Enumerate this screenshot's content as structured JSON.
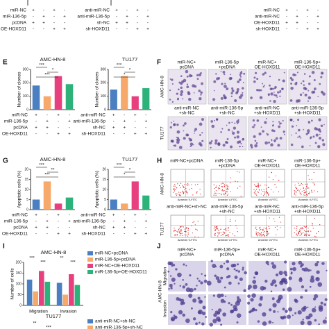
{
  "top_strip": [
    {
      "x": 40,
      "conditions": [
        {
          "label": "miR-NC",
          "signs": [
            "+",
            "-",
            "+",
            "-"
          ]
        },
        {
          "label": "miR-136-5p",
          "signs": [
            "-",
            "+",
            "-",
            "+"
          ]
        },
        {
          "label": "pcDNA",
          "signs": [
            "+",
            "+",
            "-",
            "-"
          ]
        },
        {
          "label": "OE-HOXD11",
          "signs": [
            "-",
            "-",
            "+",
            "+"
          ]
        }
      ]
    },
    {
      "x": 160,
      "conditions": [
        {
          "label": "anti-miR-NC",
          "signs": [
            "+",
            "-",
            "+",
            "-"
          ]
        },
        {
          "label": "anti-miR-136-5p",
          "signs": [
            "-",
            "+",
            "-",
            "+"
          ]
        },
        {
          "label": "sh-NC",
          "signs": [
            "+",
            "+",
            "-",
            "-"
          ]
        },
        {
          "label": "sh-HOXD11",
          "signs": [
            "-",
            "-",
            "+",
            "+"
          ]
        }
      ]
    },
    {
      "x": 405,
      "conditions": [
        {
          "label": "miR-NC",
          "signs": [
            "+",
            "-",
            "+",
            "-"
          ]
        },
        {
          "label": "anti-miR-NC",
          "signs": [
            "-",
            "+",
            "-",
            "+"
          ]
        },
        {
          "label": "OE-HOXD11",
          "signs": [
            "+",
            "+",
            "-",
            "-"
          ]
        },
        {
          "label": "sh-HOXD11",
          "signs": [
            "-",
            "-",
            "+",
            "+"
          ]
        }
      ]
    }
  ],
  "letters": [
    "E",
    "F",
    "G",
    "H",
    "I",
    "J"
  ],
  "chart_data": [
    {
      "type": "bar",
      "title": "AMC-HN-8",
      "ylabel": "Number of clones",
      "ylim": [
        0,
        300
      ],
      "yticks": [
        0,
        100,
        200,
        300
      ],
      "values": [
        180,
        100,
        250,
        190
      ],
      "colors": [
        "#4a7fc1",
        "#f6a96b",
        "#e8407f",
        "#2db37a"
      ],
      "annotations": [
        "***",
        "*",
        "***"
      ],
      "conditions": [
        {
          "label": "miR-NC",
          "signs": [
            "+",
            "-",
            "+",
            "-"
          ]
        },
        {
          "label": "miR-136-5p",
          "signs": [
            "-",
            "+",
            "-",
            "+"
          ]
        },
        {
          "label": "pcDNA",
          "signs": [
            "+",
            "+",
            "-",
            "-"
          ]
        },
        {
          "label": "OE-HOXD11",
          "signs": [
            "-",
            "-",
            "+",
            "+"
          ]
        }
      ]
    },
    {
      "type": "bar",
      "title": "TU177",
      "ylabel": "Number of clones",
      "ylim": [
        0,
        300
      ],
      "yticks": [
        0,
        100,
        200,
        300
      ],
      "values": [
        150,
        250,
        100,
        160
      ],
      "colors": [
        "#4a7fc1",
        "#f6a96b",
        "#e8407f",
        "#2db37a"
      ],
      "annotations": [
        "***",
        "*",
        "*"
      ],
      "conditions": [
        {
          "label": "anti-miR-NC",
          "signs": [
            "+",
            "-",
            "+",
            "-"
          ]
        },
        {
          "label": "anti-miR-136-5p",
          "signs": [
            "-",
            "+",
            "-",
            "+"
          ]
        },
        {
          "label": "sh-NC",
          "signs": [
            "+",
            "+",
            "-",
            "-"
          ]
        },
        {
          "label": "sh-HOXD11",
          "signs": [
            "-",
            "-",
            "+",
            "+"
          ]
        }
      ]
    },
    {
      "type": "bar",
      "title": "AMC-HN-8",
      "ylabel": "Apoptotic cells (%)",
      "ylim": [
        0,
        20
      ],
      "yticks": [
        0,
        5,
        10,
        15,
        20
      ],
      "values": [
        5,
        14,
        3,
        6
      ],
      "colors": [
        "#4a7fc1",
        "#f6a96b",
        "#e8407f",
        "#2db37a"
      ],
      "annotations": [
        "***",
        "**",
        "***"
      ],
      "conditions": [
        {
          "label": "miR-NC",
          "signs": [
            "+",
            "-",
            "+",
            "-"
          ]
        },
        {
          "label": "miR-136-5p",
          "signs": [
            "-",
            "+",
            "-",
            "+"
          ]
        },
        {
          "label": "pcDNA",
          "signs": [
            "+",
            "+",
            "-",
            "-"
          ]
        },
        {
          "label": "OE-HOXD11",
          "signs": [
            "-",
            "-",
            "+",
            "+"
          ]
        }
      ]
    },
    {
      "type": "bar",
      "title": "TU177",
      "ylabel": "Apoptotic cells (%)",
      "ylim": [
        0,
        20
      ],
      "yticks": [
        0,
        5,
        10,
        15,
        20
      ],
      "values": [
        5,
        3,
        14,
        7
      ],
      "colors": [
        "#4a7fc1",
        "#f6a96b",
        "#e8407f",
        "#2db37a"
      ],
      "annotations": [
        "***",
        "*",
        "*"
      ],
      "conditions": [
        {
          "label": "anti-miR-NC",
          "signs": [
            "+",
            "-",
            "+",
            "-"
          ]
        },
        {
          "label": "anti-miR-136-5p",
          "signs": [
            "-",
            "+",
            "-",
            "+"
          ]
        },
        {
          "label": "sh-NC",
          "signs": [
            "+",
            "+",
            "-",
            "-"
          ]
        },
        {
          "label": "sh-HOXD11",
          "signs": [
            "-",
            "-",
            "+",
            "+"
          ]
        }
      ]
    },
    {
      "type": "grouped_bar",
      "title": "AMC-HN-8",
      "ylabel": "Number of cells",
      "ylim": [
        0,
        200
      ],
      "yticks": [
        0,
        50,
        100,
        150,
        200
      ],
      "categories": [
        "Migration",
        "Invasion"
      ],
      "annotations": [
        "***",
        "***",
        "**",
        "***"
      ],
      "series": [
        {
          "name": "miR-NC+pcDNA",
          "color": "#4a7fc1",
          "values": [
            120,
            105
          ]
        },
        {
          "name": "miR-136-5p+pcDNA",
          "color": "#f6a96b",
          "values": [
            65,
            50
          ]
        },
        {
          "name": "miR-NC+OE-HOXD11",
          "color": "#e8407f",
          "values": [
            160,
            145
          ]
        },
        {
          "name": "miR-136-5p+OE-HOXD11",
          "color": "#2db37a",
          "values": [
            110,
            95
          ]
        }
      ]
    }
  ],
  "F": {
    "top": [
      [
        "miR-NC+",
        "pcDNA"
      ],
      [
        "miR-136-5p",
        "+pcDNA"
      ],
      [
        "miR-NC+",
        "OE-HOXD11"
      ],
      [
        "miR-136-5p+",
        "OE-HOXD11"
      ]
    ],
    "bottom": [
      [
        "anti-miR-NC",
        "+sh-NC"
      ],
      [
        "anti-miR-136-5p",
        "+sh-NC"
      ],
      [
        "anti-miR-NC",
        "+sh-HOXD11"
      ],
      [
        "anti-miR-136-5p",
        "+sh-HOXD11"
      ]
    ],
    "rows": [
      "AMC-HN-8",
      "TU177"
    ]
  },
  "H": {
    "top": [
      [
        "miR-NC+pcDNA"
      ],
      [
        "miR-136-5p",
        "+pcDNA"
      ],
      [
        "miR-NC+",
        "OE-HOXD11"
      ],
      [
        "miR-136-5p+",
        "OE-HOXD11"
      ]
    ],
    "bottom": [
      [
        "anti-miR-NC+sh-NC"
      ],
      [
        "anti-miR-136-5p",
        "+sh-NC"
      ],
      [
        "anti-miR-NC",
        "+sh-HOXD11"
      ],
      [
        "anti-miR-136-5p",
        "+sh-HOXD11"
      ]
    ],
    "rows": [
      "AMC-HN-8",
      "TU177"
    ],
    "x_label": "Annexin V-FITC"
  },
  "J": {
    "top": [
      [
        "miR-NC+",
        "pcDNA"
      ],
      [
        "miR-136-5p+",
        "pcDNA"
      ],
      [
        "miR-NC+",
        "OE-HOXD11"
      ],
      [
        "miR-136-5p+",
        "OE-HOXD11"
      ]
    ],
    "side": "AMC-HN-8",
    "rows": [
      "Migration",
      "Invasion"
    ]
  },
  "bottom": {
    "title": "TU177",
    "legend": [
      "anti-miR-NC+sh-NC",
      "anti-miR-136-5p+sh-NC"
    ],
    "annotations": [
      "**",
      "***"
    ]
  }
}
